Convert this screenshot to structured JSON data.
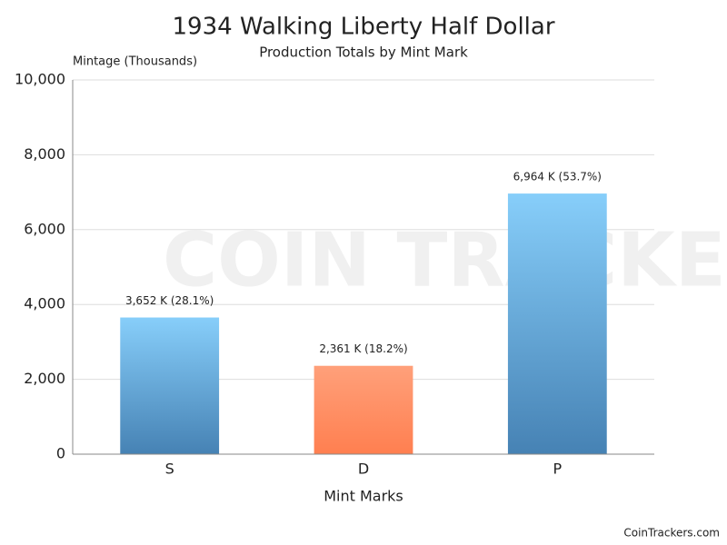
{
  "chart_data": {
    "type": "bar",
    "title": "1934 Walking Liberty Half Dollar",
    "subtitle": "Production Totals by Mint Mark",
    "y_axis_label": "Mintage (Thousands)",
    "x_axis_label": "Mint Marks",
    "categories": [
      "S",
      "D",
      "P"
    ],
    "values": [
      3652,
      2361,
      6964
    ],
    "value_labels": [
      "3,652 K (28.1%)",
      "2,361 K (18.2%)",
      "6,964 K (53.7%)"
    ],
    "bar_gradients": [
      {
        "top": "#87cefa",
        "bottom": "#4682b4"
      },
      {
        "top": "#ffa07a",
        "bottom": "#ff7f50"
      },
      {
        "top": "#87cefa",
        "bottom": "#4682b4"
      }
    ],
    "ylim": [
      0,
      10000
    ],
    "yticks": [
      0,
      {
        "value": 2000,
        "label": "2,000"
      },
      {
        "value": 4000,
        "label": "4,000"
      },
      {
        "value": 6000,
        "label": "6,000"
      },
      {
        "value": 8000,
        "label": "8,000"
      },
      {
        "value": 10000,
        "label": "10,000"
      }
    ],
    "grid": true,
    "watermark": "COIN TRACKERS",
    "footer": "CoinTrackers.com"
  }
}
